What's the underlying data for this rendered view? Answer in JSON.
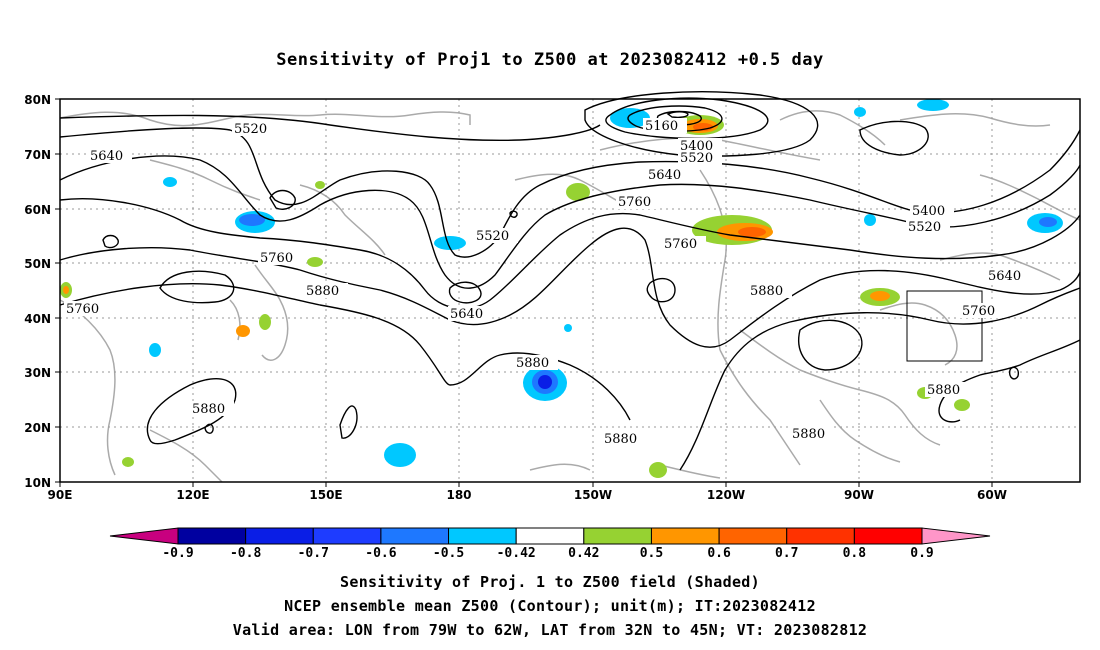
{
  "title": "Sensitivity of Proj1 to Z500 at 2023082412 +0.5 day",
  "lat_labels": [
    "80N",
    "70N",
    "60N",
    "50N",
    "40N",
    "30N",
    "20N",
    "10N"
  ],
  "lon_labels": [
    "90E",
    "120E",
    "150E",
    "180",
    "150W",
    "120W",
    "90W",
    "60W"
  ],
  "contour_labels": [
    "5520",
    "5640",
    "5160",
    "5400",
    "5520",
    "5640",
    "5760",
    "5400",
    "5520",
    "5760",
    "5520",
    "5760",
    "5640",
    "5760",
    "5880",
    "5640",
    "5760",
    "5880",
    "5880",
    "5880",
    "5880",
    "5880"
  ],
  "colorbar": {
    "labels": [
      "-0.9",
      "-0.8",
      "-0.7",
      "-0.6",
      "-0.5",
      "-0.42",
      "0.42",
      "0.5",
      "0.6",
      "0.7",
      "0.8",
      "0.9"
    ],
    "colors": [
      "#0000a0",
      "#0a1ee6",
      "#1e3cff",
      "#1e78ff",
      "#00c8ff",
      "#ffffff",
      "#96d232",
      "#ff9600",
      "#ff6400",
      "#ff3200",
      "#ff0000"
    ],
    "left_arrow_color": "#c8007f",
    "right_arrow_color": "#ff96c8"
  },
  "captions": [
    "Sensitivity of Proj. 1 to Z500 field (Shaded)",
    "NCEP ensemble mean Z500 (Contour); unit(m); IT:2023082412",
    "Valid area: LON from 79W to 62W, LAT from 32N to 45N; VT: 2023082812"
  ]
}
